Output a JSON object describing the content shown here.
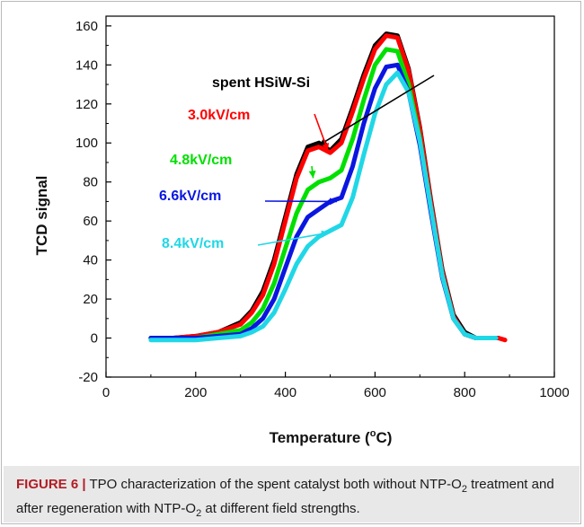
{
  "caption": {
    "figure_label": "FIGURE 6 |",
    "text_parts": [
      "TPO characterization of the spent catalyst both without NTP-O",
      "2",
      " treatment and after regeneration with NTP-O",
      "2",
      " at different field strengths."
    ]
  },
  "chart_data": {
    "type": "line",
    "xlabel": "Temperature (°C)",
    "xlabel_parts": [
      "Temperature (",
      "o",
      "C)"
    ],
    "ylabel": "TCD signal",
    "xlim": [
      0,
      1000
    ],
    "ylim": [
      -20,
      165
    ],
    "xticks": [
      0,
      200,
      400,
      600,
      800,
      1000
    ],
    "yticks": [
      -20,
      0,
      20,
      40,
      60,
      80,
      100,
      120,
      140,
      160
    ],
    "grid": false,
    "series": [
      {
        "name": "spent HSiW-Si",
        "color": "#000000",
        "x": [
          100,
          150,
          200,
          250,
          300,
          325,
          350,
          375,
          400,
          425,
          450,
          475,
          500,
          525,
          550,
          575,
          600,
          625,
          650,
          675,
          700,
          725,
          750,
          775,
          800,
          825,
          850,
          875
        ],
        "y": [
          0,
          0,
          1,
          3,
          8,
          14,
          24,
          40,
          62,
          84,
          98,
          100,
          96,
          102,
          118,
          135,
          150,
          156,
          155,
          138,
          108,
          70,
          35,
          12,
          3,
          0,
          0,
          0
        ]
      },
      {
        "name": "3.0kV/cm",
        "color": "#ff0000",
        "x": [
          100,
          150,
          200,
          250,
          300,
          325,
          350,
          375,
          400,
          425,
          450,
          475,
          500,
          525,
          550,
          575,
          600,
          625,
          650,
          675,
          700,
          725,
          750,
          775,
          800,
          825,
          850,
          875,
          890
        ],
        "y": [
          0,
          0,
          1,
          3,
          7,
          13,
          22,
          38,
          60,
          82,
          96,
          98,
          95,
          100,
          116,
          133,
          148,
          155,
          154,
          137,
          107,
          69,
          34,
          11,
          2,
          0,
          0,
          0,
          -1
        ]
      },
      {
        "name": "4.8kV/cm",
        "color": "#00e000",
        "x": [
          100,
          150,
          200,
          250,
          300,
          325,
          350,
          375,
          400,
          425,
          450,
          475,
          500,
          525,
          550,
          575,
          600,
          625,
          650,
          675,
          700,
          725,
          750,
          775,
          800,
          825,
          850
        ],
        "y": [
          0,
          0,
          0,
          2,
          4,
          8,
          15,
          28,
          46,
          64,
          76,
          80,
          82,
          86,
          102,
          122,
          140,
          148,
          147,
          130,
          102,
          66,
          32,
          10,
          2,
          0,
          0
        ]
      },
      {
        "name": "6.6kV/cm",
        "color": "#0a16e0",
        "x": [
          100,
          150,
          200,
          250,
          300,
          325,
          350,
          375,
          400,
          425,
          450,
          475,
          500,
          525,
          550,
          575,
          600,
          625,
          650,
          675,
          700,
          725,
          750,
          775,
          800,
          825,
          850,
          870
        ],
        "y": [
          0,
          0,
          0,
          1,
          2,
          5,
          10,
          20,
          36,
          52,
          62,
          66,
          70,
          72,
          88,
          110,
          128,
          139,
          140,
          126,
          99,
          64,
          31,
          10,
          2,
          0,
          0,
          0
        ]
      },
      {
        "name": "8.4kV/cm",
        "color": "#20d7e6",
        "x": [
          100,
          150,
          200,
          250,
          300,
          325,
          350,
          375,
          400,
          425,
          450,
          475,
          500,
          525,
          550,
          575,
          600,
          625,
          650,
          675,
          700,
          725,
          750,
          775,
          800,
          825,
          850,
          870
        ],
        "y": [
          -1,
          -1,
          -1,
          0,
          1,
          3,
          6,
          13,
          25,
          38,
          47,
          52,
          55,
          58,
          72,
          94,
          115,
          130,
          136,
          126,
          101,
          66,
          32,
          10,
          2,
          0,
          0,
          0
        ]
      }
    ],
    "annotations": [
      {
        "text": "spent HSiW-Si",
        "color": "#000000",
        "target": [
          476,
          99
        ]
      },
      {
        "text": "3.0kV/cm",
        "color": "#ff0000",
        "target": [
          495,
          96
        ]
      },
      {
        "text": "4.8kV/cm",
        "color": "#00e000",
        "target": [
          462,
          82
        ]
      },
      {
        "text": "6.6kV/cm",
        "color": "#0a16e0",
        "target": [
          515,
          70
        ]
      },
      {
        "text": "8.4kV/cm",
        "color": "#20d7e6",
        "target": [
          497,
          54
        ]
      }
    ]
  }
}
